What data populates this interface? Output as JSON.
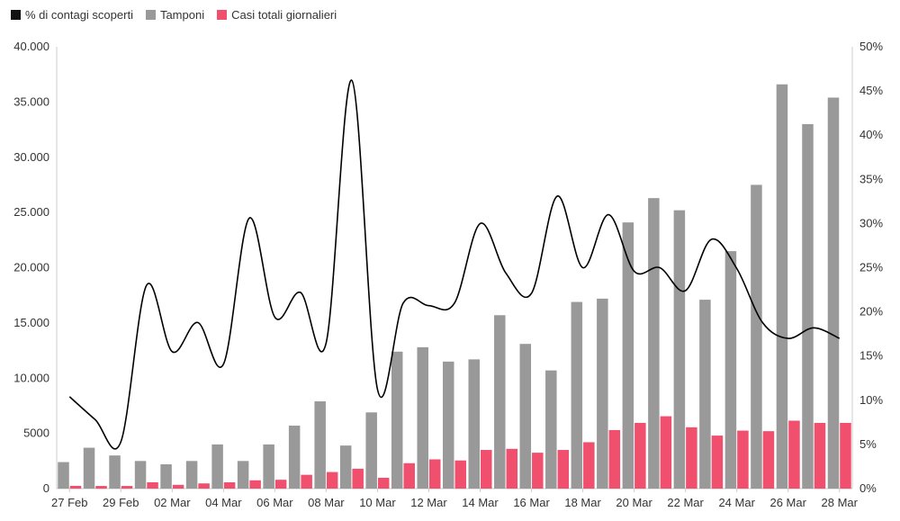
{
  "chart_data": {
    "type": "bar+line",
    "categories": [
      "27 Feb",
      "28 Feb",
      "29 Feb",
      "01 Mar",
      "02 Mar",
      "03 Mar",
      "04 Mar",
      "05 Mar",
      "06 Mar",
      "07 Mar",
      "08 Mar",
      "09 Mar",
      "10 Mar",
      "11 Mar",
      "12 Mar",
      "13 Mar",
      "14 Mar",
      "15 Mar",
      "16 Mar",
      "17 Mar",
      "18 Mar",
      "19 Mar",
      "20 Mar",
      "21 Mar",
      "22 Mar",
      "23 Mar",
      "24 Mar",
      "25 Mar",
      "26 Mar",
      "27 Mar",
      "28 Mar"
    ],
    "x_tick_labels": [
      "27 Feb",
      "29 Feb",
      "02 Mar",
      "04 Mar",
      "06 Mar",
      "08 Mar",
      "10 Mar",
      "12 Mar",
      "14 Mar",
      "16 Mar",
      "18 Mar",
      "20 Mar",
      "22 Mar",
      "24 Mar",
      "26 Mar",
      "28 Mar"
    ],
    "series": [
      {
        "name": "% di contagi scoperti",
        "axis": "right",
        "kind": "line",
        "color": "#000000",
        "values": [
          10.4,
          7.8,
          5.3,
          23.0,
          15.5,
          18.8,
          14.1,
          30.6,
          19.4,
          22.2,
          16.5,
          46.2,
          11.2,
          21.0,
          20.7,
          21.0,
          30.0,
          24.4,
          22.1,
          33.1,
          25.0,
          31.0,
          24.6,
          25.0,
          22.4,
          28.2,
          24.9,
          18.8,
          17.0,
          18.2,
          17.0
        ]
      },
      {
        "name": "Tamponi",
        "axis": "left",
        "kind": "bar",
        "color": "#999999",
        "values": [
          2400,
          3700,
          3000,
          2500,
          2200,
          2500,
          4000,
          2500,
          4000,
          5700,
          7900,
          3900,
          6900,
          12400,
          12800,
          11500,
          11700,
          15700,
          13100,
          10700,
          16900,
          17200,
          24100,
          26300,
          25200,
          17100,
          21500,
          27500,
          36600,
          33000,
          35400
        ]
      },
      {
        "name": "Casi totali giornalieri",
        "axis": "left",
        "kind": "bar",
        "color": "#F0506E",
        "values": [
          250,
          240,
          240,
          570,
          340,
          470,
          570,
          750,
          800,
          1250,
          1500,
          1800,
          980,
          2300,
          2650,
          2550,
          3500,
          3600,
          3250,
          3500,
          4200,
          5300,
          5950,
          6550,
          5550,
          4800,
          5250,
          5200,
          6150,
          5950,
          5950
        ]
      }
    ],
    "y_left": {
      "ticks": [
        0,
        5000,
        10000,
        15000,
        20000,
        25000,
        30000,
        35000,
        40000
      ],
      "tick_labels": [
        "0",
        "5000",
        "10.000",
        "15.000",
        "20.000",
        "25.000",
        "30.000",
        "35.000",
        "40.000"
      ],
      "ylim": [
        0,
        40000
      ]
    },
    "y_right": {
      "ticks": [
        0,
        5,
        10,
        15,
        20,
        25,
        30,
        35,
        40,
        45,
        50
      ],
      "tick_labels": [
        "0%",
        "5%",
        "10%",
        "15%",
        "20%",
        "25%",
        "30%",
        "35%",
        "40%",
        "45%",
        "50%"
      ],
      "ylim": [
        0,
        50
      ]
    },
    "legend_position": "top-left",
    "grid": false
  },
  "legend": [
    {
      "label": "% di contagi scoperti",
      "color": "#111111"
    },
    {
      "label": "Tamponi",
      "color": "#999999"
    },
    {
      "label": "Casi totali giornalieri",
      "color": "#F0506E"
    }
  ]
}
